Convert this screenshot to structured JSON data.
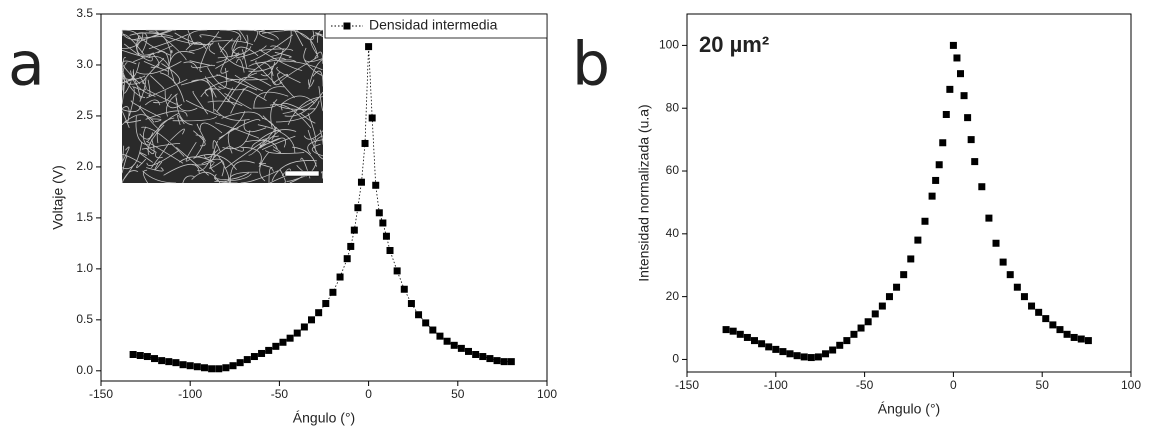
{
  "chart_data": [
    {
      "type": "scatter",
      "panel_label": "a",
      "xlabel": "Ángulo (°)",
      "ylabel": "Voltaje (V)",
      "xlim": [
        -150,
        100
      ],
      "ylim": [
        -0.1,
        3.5
      ],
      "xticks": [
        -150,
        -100,
        -50,
        0,
        50,
        100
      ],
      "yticks": [
        {
          "value": 0,
          "label": "0.0"
        },
        0.5,
        {
          "value": 1,
          "label": "1.0"
        },
        1.5,
        {
          "value": 2,
          "label": "2.0"
        },
        2.5,
        {
          "value": 3,
          "label": "3.0"
        },
        3.5
      ],
      "line_style": "dotted",
      "legend": "upper right",
      "series": [
        {
          "name": "Densidad intermedia",
          "color": "#000000",
          "x": [
            -132,
            -128,
            -124,
            -120,
            -116,
            -112,
            -108,
            -104,
            -100,
            -96,
            -92,
            -88,
            -84,
            -80,
            -76,
            -72,
            -68,
            -64,
            -60,
            -56,
            -52,
            -48,
            -44,
            -40,
            -36,
            -32,
            -28,
            -24,
            -20,
            -16,
            -12,
            -10,
            -8,
            -6,
            -4,
            -2,
            0,
            2,
            4,
            6,
            8,
            10,
            12,
            16,
            20,
            24,
            28,
            32,
            36,
            40,
            44,
            48,
            52,
            56,
            60,
            64,
            68,
            72,
            76,
            80
          ],
          "values": [
            0.16,
            0.15,
            0.14,
            0.12,
            0.1,
            0.09,
            0.08,
            0.06,
            0.05,
            0.04,
            0.03,
            0.02,
            0.02,
            0.03,
            0.05,
            0.08,
            0.11,
            0.14,
            0.17,
            0.2,
            0.24,
            0.28,
            0.32,
            0.37,
            0.43,
            0.5,
            0.57,
            0.66,
            0.77,
            0.92,
            1.1,
            1.22,
            1.38,
            1.6,
            1.85,
            2.23,
            3.18,
            2.48,
            1.82,
            1.55,
            1.45,
            1.32,
            1.18,
            0.98,
            0.8,
            0.66,
            0.55,
            0.47,
            0.4,
            0.34,
            0.29,
            0.25,
            0.22,
            0.19,
            0.16,
            0.14,
            0.12,
            0.1,
            0.09,
            0.09
          ]
        }
      ]
    },
    {
      "type": "scatter",
      "panel_label": "b",
      "annotation": "20 µm²",
      "xlabel": "Ángulo (°)",
      "ylabel": "Intensidad normalizada (u.a)",
      "xlim": [
        -150,
        100
      ],
      "ylim": [
        -4,
        110
      ],
      "xticks": [
        -150,
        -100,
        -50,
        0,
        50,
        100
      ],
      "yticks": [
        0,
        20,
        40,
        60,
        80,
        100
      ],
      "series": [
        {
          "color": "#000000",
          "x": [
            -128,
            -124,
            -120,
            -116,
            -112,
            -108,
            -104,
            -100,
            -96,
            -92,
            -88,
            -84,
            -80,
            -76,
            -72,
            -68,
            -64,
            -60,
            -56,
            -52,
            -48,
            -44,
            -40,
            -36,
            -32,
            -28,
            -24,
            -20,
            -16,
            -12,
            -10,
            -8,
            -6,
            -4,
            -2,
            0,
            2,
            4,
            6,
            8,
            10,
            12,
            16,
            20,
            24,
            28,
            32,
            36,
            40,
            44,
            48,
            52,
            56,
            60,
            64,
            68,
            72,
            76
          ],
          "values": [
            9.5,
            9,
            8,
            7,
            6,
            5,
            4,
            3.2,
            2.5,
            1.8,
            1.2,
            0.8,
            0.6,
            0.8,
            1.8,
            3,
            4.5,
            6,
            8,
            10,
            12,
            14.5,
            17,
            20,
            23,
            27,
            32,
            38,
            44,
            52,
            57,
            62,
            69,
            78,
            86,
            100,
            96,
            91,
            84,
            77,
            70,
            63,
            55,
            45,
            37,
            31,
            27,
            23,
            20,
            17,
            15,
            13,
            11,
            9.5,
            8,
            7,
            6.5,
            6
          ]
        }
      ]
    }
  ]
}
